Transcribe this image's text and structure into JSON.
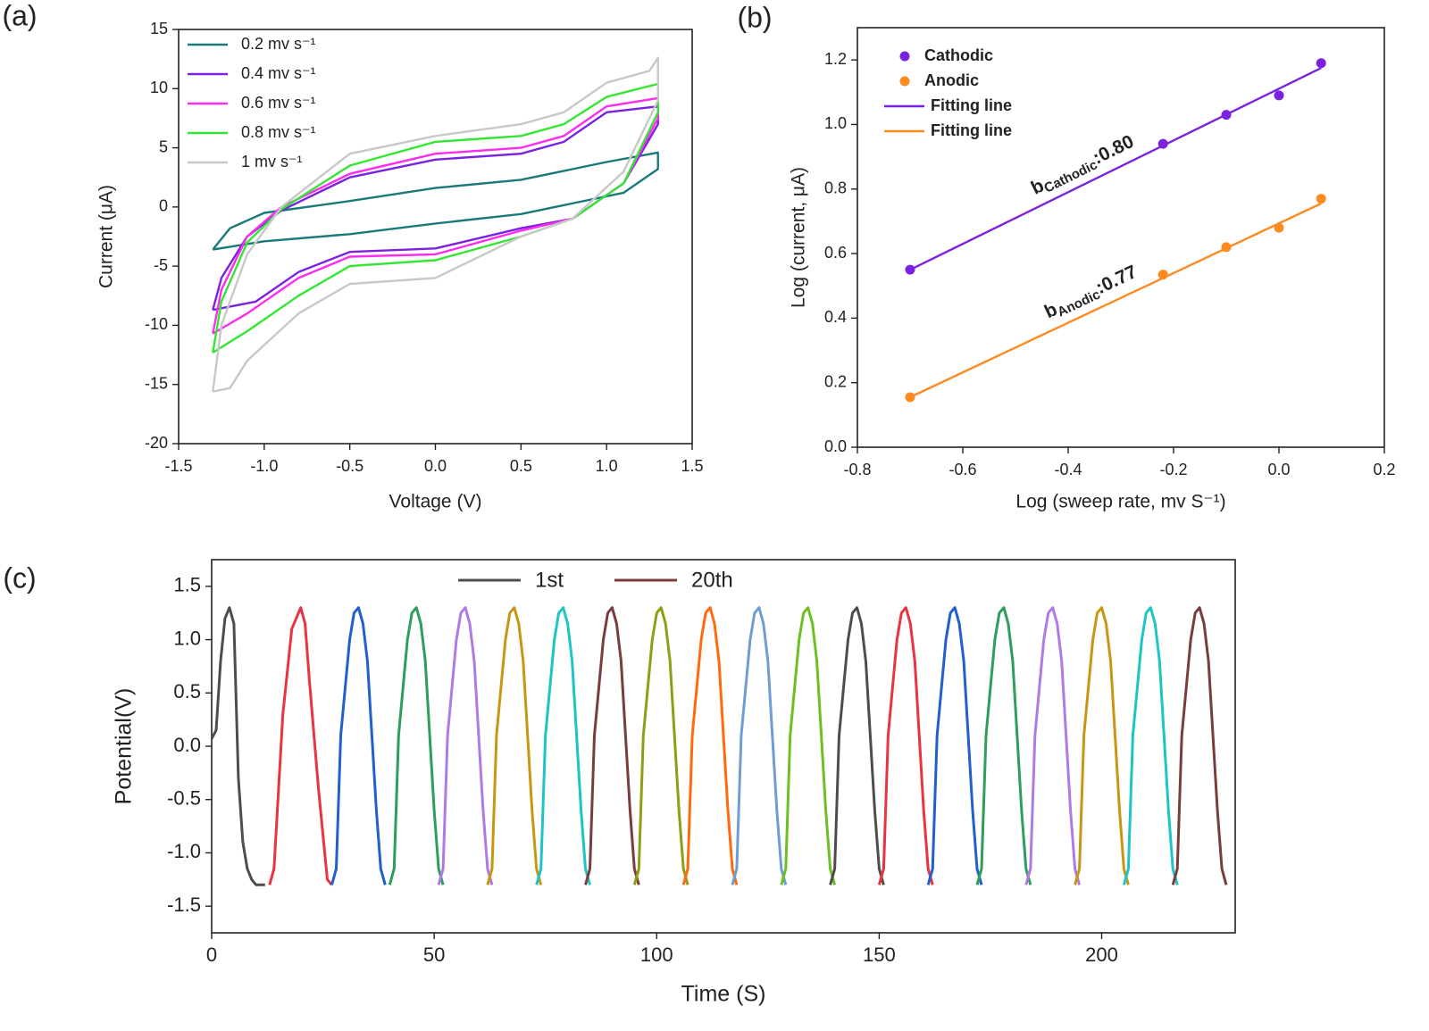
{
  "chart_data": [
    {
      "type": "line",
      "panel": "(a)",
      "xlabel": "Voltage (V)",
      "ylabel": "Current (μA)",
      "xlim": [
        -1.5,
        1.5
      ],
      "xticks": [
        -1.5,
        {
          "value": -1,
          "label": "-1.0"
        },
        -0.5,
        {
          "value": 0,
          "label": "0.0"
        },
        0.5,
        {
          "value": 1,
          "label": "1.0"
        },
        1.5
      ],
      "ylim": [
        -20,
        15
      ],
      "yticks": [
        -20,
        -15,
        -10,
        -5,
        0,
        5,
        10,
        15
      ],
      "legend": "upper left",
      "series": [
        {
          "name": "0.2 mv s⁻¹",
          "color": "#1a7a7a",
          "x": [
            -1.3,
            -1.2,
            -1.0,
            -0.5,
            0,
            0.5,
            1.0,
            1.3,
            1.3,
            1.1,
            0.5,
            0,
            -0.5,
            -1.0,
            -1.3
          ],
          "values": [
            -3.6,
            -1.8,
            -0.5,
            0.5,
            1.6,
            2.3,
            3.8,
            4.6,
            3.2,
            1.2,
            -0.6,
            -1.4,
            -2.3,
            -2.9,
            -3.6
          ]
        },
        {
          "name": "0.4 mv s⁻¹",
          "color": "#7b22e0",
          "x": [
            -1.3,
            -1.25,
            -1.1,
            -0.9,
            -0.5,
            0,
            0.5,
            0.75,
            1.0,
            1.3,
            1.3,
            1.1,
            0.8,
            0.5,
            0,
            -0.5,
            -0.8,
            -1.05,
            -1.3
          ],
          "values": [
            -8.7,
            -6,
            -2.5,
            -0.3,
            2.5,
            4,
            4.5,
            5.5,
            8,
            8.5,
            7,
            2,
            -1,
            -1.8,
            -3.5,
            -3.8,
            -5.5,
            -8,
            -8.7
          ]
        },
        {
          "name": "0.6 mv s⁻¹",
          "color": "#ff2bf0",
          "x": [
            -1.3,
            -1.25,
            -1.1,
            -0.9,
            -0.5,
            0,
            0.5,
            0.75,
            1.0,
            1.3,
            1.3,
            1.1,
            0.8,
            0.5,
            0,
            -0.5,
            -0.8,
            -1.1,
            -1.3
          ],
          "values": [
            -10.7,
            -7,
            -2.5,
            0,
            2.8,
            4.5,
            5,
            6,
            8.5,
            9.2,
            7.5,
            2,
            -1,
            -2,
            -4,
            -4.2,
            -6,
            -9,
            -10.7
          ]
        },
        {
          "name": "0.8 mv s⁻¹",
          "color": "#33e633",
          "x": [
            -1.3,
            -1.25,
            -1.1,
            -0.9,
            -0.5,
            0,
            0.5,
            0.75,
            1.0,
            1.3,
            1.3,
            1.1,
            0.8,
            0.5,
            0,
            -0.5,
            -0.8,
            -1.1,
            -1.3
          ],
          "values": [
            -12.3,
            -8,
            -3,
            -0.2,
            3.5,
            5.5,
            6,
            7,
            9.3,
            10.4,
            8,
            2,
            -1,
            -2.5,
            -4.5,
            -5,
            -7.5,
            -10.5,
            -12.3
          ]
        },
        {
          "name": "1 mv s⁻¹",
          "color": "#c8c8c8",
          "x": [
            -1.3,
            -1.25,
            -1.1,
            -0.9,
            -0.5,
            0,
            0.5,
            0.75,
            1.0,
            1.25,
            1.3,
            1.3,
            1.1,
            0.8,
            0.5,
            0,
            -0.5,
            -0.8,
            -1.1,
            -1.2,
            -1.3
          ],
          "values": [
            -15.6,
            -10,
            -4,
            0,
            4.5,
            6,
            7,
            8,
            10.5,
            11.5,
            12.6,
            9,
            3,
            -1,
            -2.5,
            -6,
            -6.5,
            -9,
            -13,
            -15.3,
            -15.6
          ]
        }
      ]
    },
    {
      "type": "scatter",
      "panel": "(b)",
      "xlabel": "Log (sweep rate, mv S⁻¹)",
      "ylabel": "Log (current, μA)",
      "xlim": [
        -0.8,
        0.2
      ],
      "xticks": [
        -0.8,
        -0.6,
        -0.4,
        -0.2,
        {
          "value": 0,
          "label": "0.0"
        },
        0.2
      ],
      "ylim": [
        0,
        1.3
      ],
      "yticks": [
        {
          "value": 0,
          "label": "0.0"
        },
        0.2,
        0.4,
        0.6,
        0.8,
        {
          "value": 1,
          "label": "1.0"
        },
        1.2
      ],
      "legend": "upper left",
      "series": [
        {
          "name": "Cathodic",
          "mode": "markers",
          "color": "#7b22e0",
          "x": [
            -0.7,
            -0.22,
            -0.1,
            0,
            0.08
          ],
          "values": [
            0.55,
            0.94,
            1.03,
            1.09,
            1.19
          ]
        },
        {
          "name": "Anodic",
          "mode": "markers",
          "color": "#ff8a1f",
          "x": [
            -0.7,
            -0.22,
            -0.1,
            0,
            0.08
          ],
          "values": [
            0.155,
            0.535,
            0.62,
            0.68,
            0.77
          ]
        },
        {
          "name": "Fitting line",
          "mode": "line",
          "color": "#7b22e0",
          "x": [
            -0.7,
            0.08
          ],
          "values": [
            0.55,
            1.175
          ]
        },
        {
          "name": "Fitting line",
          "mode": "line",
          "color": "#ff8a1f",
          "x": [
            -0.7,
            0.08
          ],
          "values": [
            0.155,
            0.755
          ]
        }
      ],
      "annotations": [
        {
          "base": "b",
          "sub": "Cathodic",
          "text": ":0.80"
        },
        {
          "base": "b",
          "sub": "Anodic",
          "text": ":0.77"
        }
      ]
    },
    {
      "type": "line",
      "panel": "(c)",
      "xlabel": "Time (S)",
      "ylabel": "Potential(V)",
      "xlim": [
        0,
        230
      ],
      "xticks": [
        0,
        50,
        100,
        150,
        200
      ],
      "ylim": [
        -1.75,
        1.75
      ],
      "yticks": [
        -1.5,
        {
          "value": -1,
          "label": "-1.0"
        },
        -0.5,
        {
          "value": 0,
          "label": "0.0"
        },
        0.5,
        {
          "value": 1,
          "label": "1.0"
        },
        1.5
      ],
      "legend": "upper center",
      "series": [
        {
          "name": "1st",
          "color": "#4d4d4d",
          "x": [
            0,
            1,
            2,
            3,
            4,
            5,
            6,
            7,
            8,
            9,
            10,
            12
          ],
          "values": [
            0.07,
            0.15,
            0.8,
            1.2,
            1.3,
            1.15,
            -0.3,
            -0.9,
            -1.15,
            -1.25,
            -1.3,
            -1.3
          ]
        },
        {
          "color": "#e8343f",
          "x": [
            13,
            14,
            16,
            18,
            20,
            21,
            22,
            24,
            26,
            27
          ],
          "values": [
            -1.3,
            -1.15,
            0.3,
            1.1,
            1.3,
            1.15,
            0.6,
            -0.4,
            -1.25,
            -1.3
          ]
        },
        {
          "color": "#1f5fd0",
          "x": [
            27,
            28,
            29,
            31,
            32,
            33,
            34,
            35,
            37,
            38,
            39
          ],
          "values": [
            -1.3,
            -1.15,
            0.1,
            1,
            1.25,
            1.3,
            1.15,
            0.8,
            -0.6,
            -1.15,
            -1.3
          ]
        },
        {
          "color": "#2e9e5b",
          "x": [
            40,
            41,
            42,
            44,
            45,
            46,
            47,
            48,
            50,
            51,
            52
          ],
          "values": [
            -1.3,
            -1.15,
            0.1,
            1,
            1.25,
            1.3,
            1.15,
            0.8,
            -0.6,
            -1.15,
            -1.3
          ]
        },
        {
          "color": "#b07ae6",
          "x": [
            51,
            52,
            53,
            55,
            56,
            57,
            58,
            59,
            61,
            62,
            63
          ],
          "values": [
            -1.3,
            -1.15,
            0.1,
            1,
            1.25,
            1.3,
            1.15,
            0.8,
            -0.6,
            -1.15,
            -1.3
          ]
        },
        {
          "color": "#c99612",
          "x": [
            62,
            63,
            64,
            66,
            67,
            68,
            69,
            70,
            72,
            73,
            74
          ],
          "values": [
            -1.3,
            -1.15,
            0.1,
            1,
            1.25,
            1.3,
            1.15,
            0.8,
            -0.6,
            -1.15,
            -1.3
          ]
        },
        {
          "color": "#1fc4c4",
          "x": [
            73,
            74,
            75,
            77,
            78,
            79,
            80,
            81,
            83,
            84,
            85
          ],
          "values": [
            -1.3,
            -1.15,
            0.1,
            1,
            1.25,
            1.3,
            1.15,
            0.8,
            -0.6,
            -1.15,
            -1.3
          ]
        },
        {
          "color": "#7a3d3d",
          "x": [
            84,
            85,
            86,
            88,
            89,
            90,
            91,
            92,
            94,
            95,
            96
          ],
          "values": [
            -1.3,
            -1.15,
            0.1,
            1,
            1.25,
            1.3,
            1.15,
            0.8,
            -0.6,
            -1.15,
            -1.3
          ]
        },
        {
          "color": "#8f9e12",
          "x": [
            95,
            96,
            97,
            99,
            100,
            101,
            102,
            103,
            105,
            106,
            107
          ],
          "values": [
            -1.3,
            -1.15,
            0.1,
            1,
            1.25,
            1.3,
            1.15,
            0.8,
            -0.6,
            -1.15,
            -1.3
          ]
        },
        {
          "color": "#ff6a10",
          "x": [
            106,
            107,
            108,
            110,
            111,
            112,
            113,
            114,
            116,
            117,
            118
          ],
          "values": [
            -1.3,
            -1.15,
            0.1,
            1,
            1.25,
            1.3,
            1.15,
            0.8,
            -0.6,
            -1.15,
            -1.3
          ]
        },
        {
          "color": "#6e9dd6",
          "x": [
            117,
            118,
            119,
            121,
            122,
            123,
            124,
            125,
            127,
            128,
            129
          ],
          "values": [
            -1.3,
            -1.15,
            0.1,
            1,
            1.25,
            1.3,
            1.15,
            0.8,
            -0.6,
            -1.15,
            -1.3
          ]
        },
        {
          "color": "#6cc01f",
          "x": [
            128,
            129,
            130,
            132,
            133,
            134,
            135,
            136,
            138,
            139,
            140
          ],
          "values": [
            -1.3,
            -1.15,
            0.1,
            1,
            1.25,
            1.3,
            1.15,
            0.8,
            -0.6,
            -1.15,
            -1.3
          ]
        },
        {
          "color": "#4d4d4d",
          "x": [
            139,
            140,
            141,
            143,
            144,
            145,
            146,
            147,
            149,
            150,
            151
          ],
          "values": [
            -1.3,
            -1.15,
            0.1,
            1,
            1.25,
            1.3,
            1.15,
            0.8,
            -0.6,
            -1.15,
            -1.3
          ]
        },
        {
          "color": "#e8343f",
          "x": [
            150,
            151,
            152,
            154,
            155,
            156,
            157,
            158,
            160,
            161,
            162
          ],
          "values": [
            -1.3,
            -1.15,
            0.1,
            1,
            1.25,
            1.3,
            1.15,
            0.8,
            -0.6,
            -1.15,
            -1.3
          ]
        },
        {
          "color": "#1f5fd0",
          "x": [
            161,
            162,
            163,
            165,
            166,
            167,
            168,
            169,
            171,
            172,
            173
          ],
          "values": [
            -1.3,
            -1.15,
            0.1,
            1,
            1.25,
            1.3,
            1.15,
            0.8,
            -0.6,
            -1.15,
            -1.3
          ]
        },
        {
          "color": "#2e9e5b",
          "x": [
            172,
            173,
            174,
            176,
            177,
            178,
            179,
            180,
            182,
            183,
            184
          ],
          "values": [
            -1.3,
            -1.15,
            0.1,
            1,
            1.25,
            1.3,
            1.15,
            0.8,
            -0.6,
            -1.15,
            -1.3
          ]
        },
        {
          "color": "#b07ae6",
          "x": [
            183,
            184,
            185,
            187,
            188,
            189,
            190,
            191,
            193,
            194,
            195
          ],
          "values": [
            -1.3,
            -1.15,
            0.1,
            1,
            1.25,
            1.3,
            1.15,
            0.8,
            -0.6,
            -1.15,
            -1.3
          ]
        },
        {
          "color": "#c99612",
          "x": [
            194,
            195,
            196,
            198,
            199,
            200,
            201,
            202,
            204,
            205,
            206
          ],
          "values": [
            -1.3,
            -1.15,
            0.1,
            1,
            1.25,
            1.3,
            1.15,
            0.8,
            -0.6,
            -1.15,
            -1.3
          ]
        },
        {
          "color": "#1fc4c4",
          "x": [
            205,
            206,
            207,
            209,
            210,
            211,
            212,
            213,
            215,
            216,
            217
          ],
          "values": [
            -1.3,
            -1.15,
            0.1,
            1,
            1.25,
            1.3,
            1.15,
            0.8,
            -0.6,
            -1.15,
            -1.3
          ]
        },
        {
          "name": "20th",
          "color": "#7a3d3d",
          "x": [
            216,
            217,
            218,
            220,
            221,
            222,
            223,
            224,
            226,
            227,
            228
          ],
          "values": [
            -1.3,
            -1.15,
            0.1,
            1,
            1.25,
            1.3,
            1.15,
            0.8,
            -0.6,
            -1.15,
            -1.3
          ]
        }
      ]
    }
  ]
}
